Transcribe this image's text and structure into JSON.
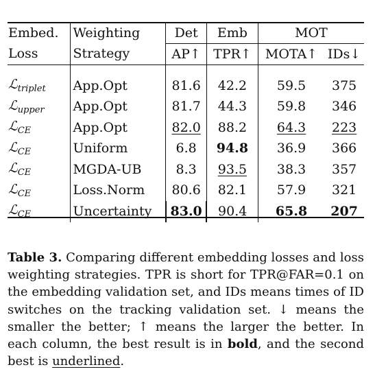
{
  "table": {
    "header_row1": {
      "loss": "Embed.",
      "strategy": "Weighting",
      "det": "Det",
      "emb": "Emb",
      "mot": "MOT"
    },
    "header_row2": {
      "loss": "Loss",
      "strategy": "Strategy",
      "ap": "AP↑",
      "tpr": "TPR↑",
      "mota": "MOTA↑",
      "ids": "IDs↓"
    },
    "rows": [
      {
        "loss_main": "ℒ",
        "loss_sub": "triplet",
        "strategy": "App.Opt",
        "ap": "81.6",
        "tpr": "42.2",
        "mota": "59.5",
        "ids": "375"
      },
      {
        "loss_main": "ℒ",
        "loss_sub": "upper",
        "strategy": "App.Opt",
        "ap": "81.7",
        "tpr": "44.3",
        "mota": "59.8",
        "ids": "346"
      },
      {
        "loss_main": "ℒ",
        "loss_sub": "CE",
        "strategy": "App.Opt",
        "ap": "82.0",
        "tpr": "88.2",
        "mota": "64.3",
        "ids": "223"
      },
      {
        "loss_main": "ℒ",
        "loss_sub": "CE",
        "strategy": "Uniform",
        "ap": "6.8",
        "tpr": "94.8",
        "mota": "36.9",
        "ids": "366"
      },
      {
        "loss_main": "ℒ",
        "loss_sub": "CE",
        "strategy": "MGDA-UB",
        "ap": "8.3",
        "tpr": "93.5",
        "mota": "38.3",
        "ids": "357"
      },
      {
        "loss_main": "ℒ",
        "loss_sub": "CE",
        "strategy": "Loss.Norm",
        "ap": "80.6",
        "tpr": "82.1",
        "mota": "57.9",
        "ids": "321"
      },
      {
        "loss_main": "ℒ",
        "loss_sub": "CE",
        "strategy": "Uncertainty",
        "ap": "83.0",
        "tpr": "90.4",
        "mota": "65.8",
        "ids": "207"
      }
    ]
  },
  "caption": {
    "label": "Table 3.",
    "text_1": " Comparing different embedding losses and loss weighting strategies. TPR is short for TPR@FAR=0.1 on the embedding validation set, and IDs means times of ID switches on the tracking validation set. ↓ means the smaller the better; ↑ means the larger the better. In each column, the best result is in ",
    "bold_word": "bold",
    "text_2": ", and the second best is ",
    "underline_word": "underlined",
    "text_3": "."
  }
}
